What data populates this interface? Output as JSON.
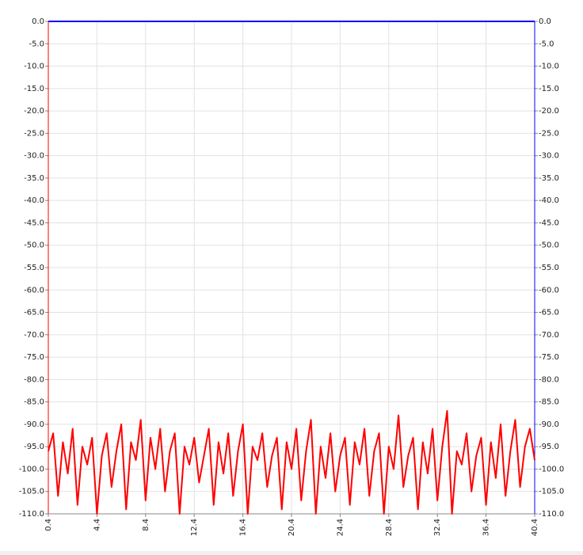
{
  "chart_data": {
    "type": "line",
    "xlim": [
      0.4,
      40.4
    ],
    "xticks": [
      0.4,
      4.4,
      8.4,
      12.4,
      16.4,
      20.4,
      24.4,
      28.4,
      32.4,
      36.4,
      40.4
    ],
    "ylim": [
      -110,
      0
    ],
    "yticks": [
      {
        "value": 0,
        "label": "0.0"
      },
      {
        "value": -5,
        "label": "-5.0"
      },
      {
        "value": -10,
        "label": "-10.0"
      },
      {
        "value": -15,
        "label": "-15.0"
      },
      {
        "value": -20,
        "label": "-20.0"
      },
      {
        "value": -25,
        "label": "-25.0"
      },
      {
        "value": -30,
        "label": "-30.0"
      },
      {
        "value": -35,
        "label": "-35.0"
      },
      {
        "value": -40,
        "label": "-40.0"
      },
      {
        "value": -45,
        "label": "-45.0"
      },
      {
        "value": -50,
        "label": "-50.0"
      },
      {
        "value": -55,
        "label": "-55.0"
      },
      {
        "value": -60,
        "label": "-60.0"
      },
      {
        "value": -65,
        "label": "-65.0"
      },
      {
        "value": -70,
        "label": "-70.0"
      },
      {
        "value": -75,
        "label": "-75.0"
      },
      {
        "value": -80,
        "label": "-80.0"
      },
      {
        "value": -85,
        "label": "-85.0"
      },
      {
        "value": -90,
        "label": "-90.0"
      },
      {
        "value": -95,
        "label": "-95.0"
      },
      {
        "value": -100,
        "label": "-100.0"
      },
      {
        "value": -105,
        "label": "-105.0"
      },
      {
        "value": -110,
        "label": "-110.0"
      }
    ],
    "y2lim": [
      -110,
      0
    ],
    "y2ticks": [
      {
        "value": 0,
        "label": "0.0"
      },
      {
        "value": -5,
        "label": "-5.0"
      },
      {
        "value": -10,
        "label": "-10.0"
      },
      {
        "value": -15,
        "label": "-15.0"
      },
      {
        "value": -20,
        "label": "-20.0"
      },
      {
        "value": -25,
        "label": "-25.0"
      },
      {
        "value": -30,
        "label": "-30.0"
      },
      {
        "value": -35,
        "label": "-35.0"
      },
      {
        "value": -40,
        "label": "-40.0"
      },
      {
        "value": -45,
        "label": "-45.0"
      },
      {
        "value": -50,
        "label": "-50.0"
      },
      {
        "value": -55,
        "label": "-55.0"
      },
      {
        "value": -60,
        "label": "-60.0"
      },
      {
        "value": -65,
        "label": "-65.0"
      },
      {
        "value": -70,
        "label": "-70.0"
      },
      {
        "value": -75,
        "label": "-75.0"
      },
      {
        "value": -80,
        "label": "-80.0"
      },
      {
        "value": -85,
        "label": "-85.0"
      },
      {
        "value": -90,
        "label": "-90.0"
      },
      {
        "value": -95,
        "label": "-95.0"
      },
      {
        "value": -100,
        "label": "-100.0"
      },
      {
        "value": -105,
        "label": "-105.0"
      },
      {
        "value": -110,
        "label": "-110.0"
      }
    ],
    "grid": true,
    "y_axis_color": "#ff0000",
    "y2_axis_color": "#0000ff",
    "series": [
      {
        "color": "#ff0000",
        "x": [
          0.4,
          0.8,
          1.2,
          1.6,
          2,
          2.4,
          2.8,
          3.2,
          3.6,
          4,
          4.4,
          4.8,
          5.2,
          5.6,
          6,
          6.4,
          6.8,
          7.2,
          7.6,
          8,
          8.4,
          8.8,
          9.2,
          9.6,
          10,
          10.4,
          10.8,
          11.2,
          11.6,
          12,
          12.4,
          12.8,
          13.2,
          13.6,
          14,
          14.4,
          14.8,
          15.2,
          15.6,
          16,
          16.4,
          16.8,
          17.2,
          17.6,
          18,
          18.4,
          18.8,
          19.2,
          19.6,
          20,
          20.4,
          20.8,
          21.2,
          21.6,
          22,
          22.4,
          22.8,
          23.2,
          23.6,
          24,
          24.4,
          24.8,
          25.2,
          25.6,
          26,
          26.4,
          26.8,
          27.2,
          27.6,
          28,
          28.4,
          28.8,
          29.2,
          29.6,
          30,
          30.4,
          30.8,
          31.2,
          31.6,
          32,
          32.4,
          32.8,
          33.2,
          33.6,
          34,
          34.4,
          34.8,
          35.2,
          35.6,
          36,
          36.4,
          36.8,
          37.2,
          37.6,
          38,
          38.4,
          38.8,
          39.2,
          39.6,
          40,
          40.4
        ],
        "values": [
          -96,
          -92,
          -106,
          -94,
          -101,
          -91,
          -108,
          -95,
          -99,
          -93,
          -110,
          -97,
          -92,
          -104,
          -96,
          -90,
          -109,
          -94,
          -98,
          -89,
          -107,
          -93,
          -100,
          -91,
          -105,
          -96,
          -92,
          -110,
          -95,
          -99,
          -93,
          -103,
          -97,
          -91,
          -108,
          -94,
          -101,
          -92,
          -106,
          -96,
          -90,
          -110,
          -95,
          -98,
          -92,
          -104,
          -97,
          -93,
          -109,
          -94,
          -100,
          -91,
          -107,
          -96,
          -89,
          -110,
          -95,
          -102,
          -92,
          -105,
          -97,
          -93,
          -108,
          -94,
          -99,
          -91,
          -106,
          -96,
          -92,
          -110,
          -95,
          -100,
          -88,
          -104,
          -97,
          -93,
          -109,
          -94,
          -101,
          -91,
          -107,
          -95,
          -87,
          -110,
          -96,
          -99,
          -92,
          -105,
          -97,
          -93,
          -108,
          -94,
          -102,
          -90,
          -106,
          -96,
          -89,
          -104,
          -95,
          -91,
          -98
        ]
      },
      {
        "color": "#0000ff",
        "axis": "y2",
        "x": [
          0.4,
          40.4
        ],
        "values": [
          0,
          0
        ]
      }
    ]
  }
}
